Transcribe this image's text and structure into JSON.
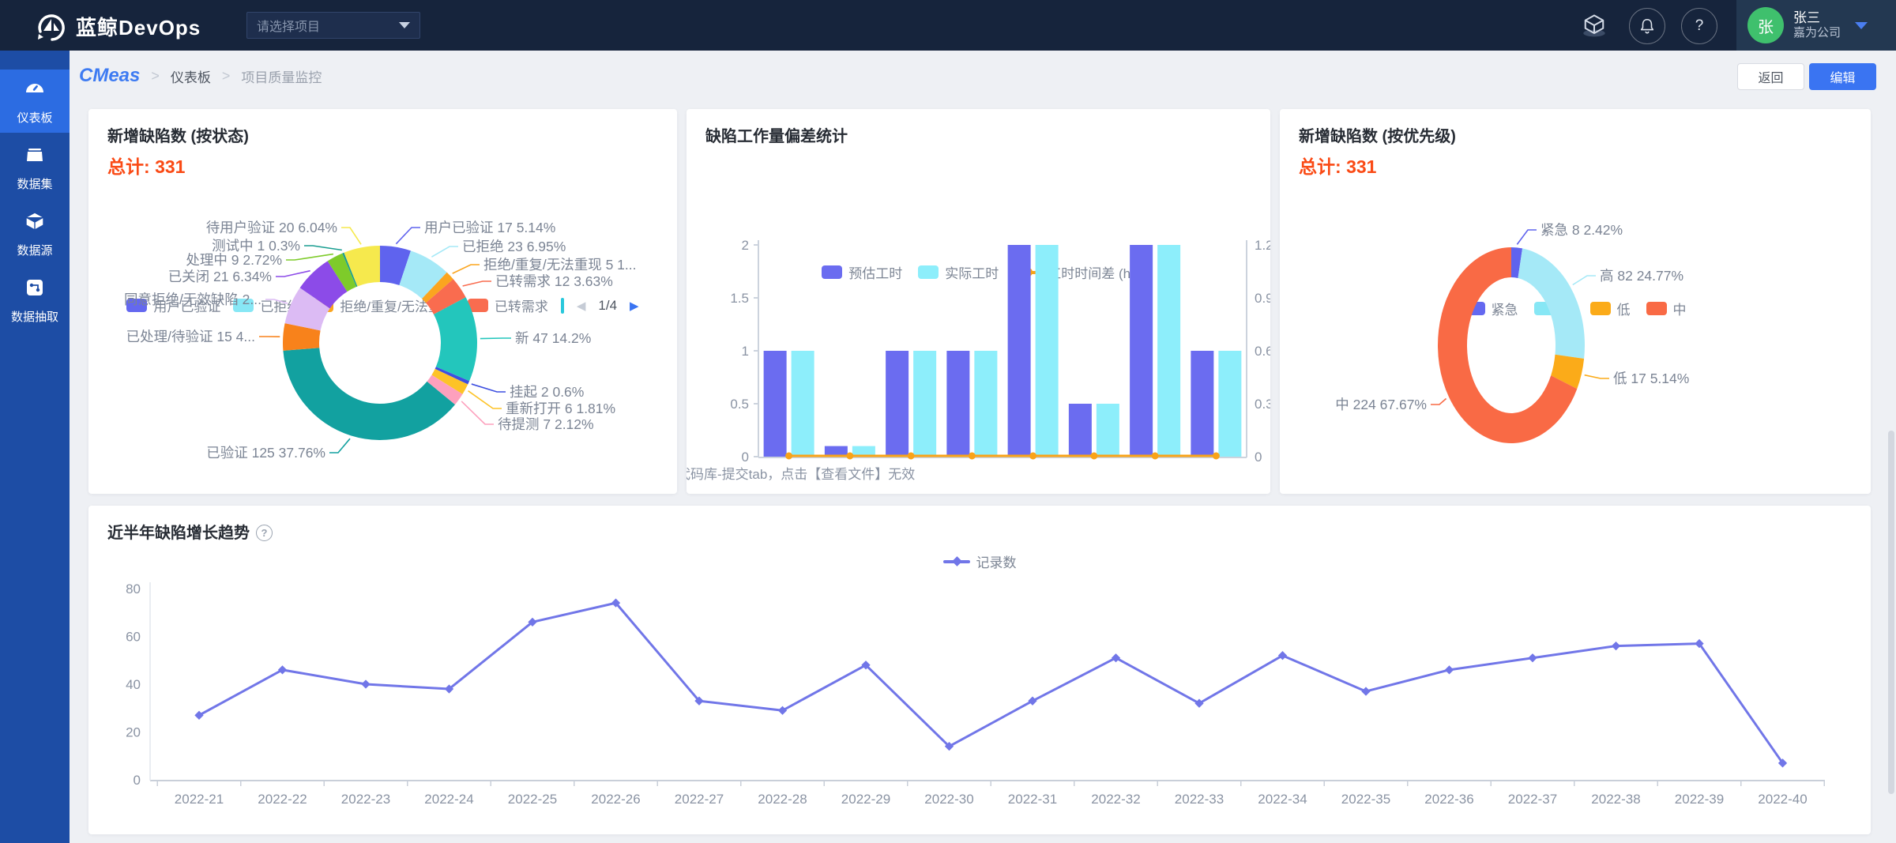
{
  "topbar": {
    "logo_text": "蓝鲸DevOps",
    "project_placeholder": "请选择项目",
    "user": {
      "avatar_text": "张",
      "name": "张三",
      "company": "嘉为公司"
    }
  },
  "sidebar": {
    "items": [
      {
        "label": "仪表板",
        "icon": "dashboard-gauge",
        "active": true
      },
      {
        "label": "数据集",
        "icon": "dataset-box",
        "active": false
      },
      {
        "label": "数据源",
        "icon": "datasource-cube",
        "active": false
      },
      {
        "label": "数据抽取",
        "icon": "extract-node",
        "active": false
      }
    ]
  },
  "breadcrumb": {
    "brand": "CMeas",
    "level1": "仪表板",
    "level2": "项目质量监控"
  },
  "buttons": {
    "back": "返回",
    "edit": "编辑"
  },
  "colors": {
    "topbar_bg": "#16243c",
    "sidebar_bg": "#1d4da5",
    "sidebar_active": "#2c6ce2",
    "accent_blue": "#3a74f2",
    "total_orange": "#fa4a15",
    "avatar_green": "#3fc06d"
  },
  "chart_data": [
    {
      "id": "defects_by_status",
      "type": "pie",
      "title": "新增缺陷数 (按状态)",
      "total_label": "总计:",
      "total_value": "331",
      "legend_visible": [
        {
          "name": "用户已验证",
          "color": "#6468f0"
        },
        {
          "name": "已拒绝",
          "color": "#87e7f5"
        },
        {
          "name": "拒绝/重复/无法重现",
          "color": "#fba51f"
        },
        {
          "name": "已转需求",
          "color": "#f96c4f"
        }
      ],
      "legend_pagination": {
        "current": "1/4",
        "prev_arrow": "◀",
        "next_arrow": "▶"
      },
      "slices": [
        {
          "name": "用户已验证",
          "value": 17,
          "pct": 5.14,
          "label": "用户已验证 17 5.14%",
          "color": "#5f63ee"
        },
        {
          "name": "已拒绝",
          "value": 23,
          "pct": 6.95,
          "label": "已拒绝 23 6.95%",
          "color": "#a5e9f7"
        },
        {
          "name": "拒绝/重复/无法重现",
          "value": 5,
          "pct": 1.51,
          "label": "拒绝/重复/无法重现 5 1...",
          "color": "#fba51f"
        },
        {
          "name": "已转需求",
          "value": 12,
          "pct": 3.63,
          "label": "已转需求 12 3.63%",
          "color": "#f96c4f"
        },
        {
          "name": "新",
          "value": 47,
          "pct": 14.2,
          "label": "新 47 14.2%",
          "color": "#23c6bc"
        },
        {
          "name": "挂起",
          "value": 2,
          "pct": 0.6,
          "label": "挂起 2 0.6%",
          "color": "#3d4fe0"
        },
        {
          "name": "重新打开",
          "value": 6,
          "pct": 1.81,
          "label": "重新打开 6 1.81%",
          "color": "#fdc327"
        },
        {
          "name": "待提测",
          "value": 7,
          "pct": 2.12,
          "label": "待提测 7 2.12%",
          "color": "#fda0bd"
        },
        {
          "name": "已验证",
          "value": 125,
          "pct": 37.76,
          "label": "已验证 125 37.76%",
          "color": "#12a1a0"
        },
        {
          "name": "已处理/待验证",
          "value": 15,
          "pct": 4.53,
          "label": "已处理/待验证 15 4...",
          "color": "#f8821b"
        },
        {
          "name": "同意拒绝/无效缺陷",
          "value": 21,
          "pct": 6.34,
          "label": "同意拒绝/无效缺陷 2...",
          "color": "#dcbbf4"
        },
        {
          "name": "已关闭",
          "value": 21,
          "pct": 6.34,
          "label": "已关闭 21 6.34%",
          "color": "#8c4be8"
        },
        {
          "name": "处理中",
          "value": 9,
          "pct": 2.72,
          "label": "处理中 9 2.72%",
          "color": "#7ecb2a"
        },
        {
          "name": "测试中",
          "value": 1,
          "pct": 0.3,
          "label": "测试中 1 0.3%",
          "color": "#1a9e91"
        },
        {
          "name": "待用户验证",
          "value": 20,
          "pct": 6.04,
          "label": "待用户验证 20 6.04%",
          "color": "#f6e94d"
        }
      ]
    },
    {
      "id": "workload_deviation",
      "type": "bar",
      "title": "缺陷工作量偏差统计",
      "legend": [
        {
          "name": "预估工时",
          "color": "#6b6cf0",
          "shape": "rect"
        },
        {
          "name": "实际工时",
          "color": "#8deefb",
          "shape": "rect"
        },
        {
          "name": "工时时间差 (h)",
          "color": "#f9a318",
          "shape": "line"
        }
      ],
      "series": [
        {
          "name": "预估工时",
          "values": [
            1,
            0.1,
            1,
            1,
            2,
            0.5,
            2,
            1
          ]
        },
        {
          "name": "实际工时",
          "values": [
            1,
            0.1,
            1,
            1,
            2,
            0.5,
            2,
            1
          ]
        },
        {
          "name": "工时时间差 (h)",
          "values": [
            0,
            0,
            0,
            0,
            0,
            0,
            0,
            0
          ],
          "axis": "right",
          "type": "line"
        }
      ],
      "left_axis_ticks": [
        "0",
        "0.5",
        "1",
        "1.5",
        "2"
      ],
      "left_axis_max": 2,
      "right_axis_ticks": [
        "0",
        "0.3",
        "0.6",
        "0.9",
        "1.2"
      ],
      "right_axis_max": 1.2,
      "x_axis_label_visible": "代码库-提交tab，点击【查看文件】无效"
    },
    {
      "id": "defects_by_priority",
      "type": "pie",
      "title": "新增缺陷数 (按优先级)",
      "total_label": "总计:",
      "total_value": "331",
      "legend_visible": [
        {
          "name": "紧急",
          "color": "#6468f0"
        },
        {
          "name": "高",
          "color": "#87e7f5"
        },
        {
          "name": "低",
          "color": "#fbab19"
        },
        {
          "name": "中",
          "color": "#f96a45"
        }
      ],
      "slices": [
        {
          "name": "紧急",
          "value": 8,
          "pct": 2.42,
          "label": "紧急 8 2.42%",
          "color": "#5f63ee"
        },
        {
          "name": "高",
          "value": 82,
          "pct": 24.77,
          "label": "高 82 24.77%",
          "color": "#a5e9f7"
        },
        {
          "name": "低",
          "value": 17,
          "pct": 5.14,
          "label": "低 17 5.14%",
          "color": "#fbab19"
        },
        {
          "name": "中",
          "value": 224,
          "pct": 67.67,
          "label": "中 224 67.67%",
          "color": "#f96a45"
        }
      ]
    },
    {
      "id": "defect_trend",
      "type": "line",
      "title": "近半年缺陷增长趋势",
      "legend": [
        {
          "name": "记录数",
          "color": "#7176e8"
        }
      ],
      "x": [
        "2022-21",
        "2022-22",
        "2022-23",
        "2022-24",
        "2022-25",
        "2022-26",
        "2022-27",
        "2022-28",
        "2022-29",
        "2022-30",
        "2022-31",
        "2022-32",
        "2022-33",
        "2022-34",
        "2022-35",
        "2022-36",
        "2022-37",
        "2022-38",
        "2022-39",
        "2022-40"
      ],
      "values": [
        27,
        46,
        40,
        38,
        66,
        74,
        33,
        29,
        48,
        14,
        33,
        51,
        32,
        52,
        37,
        46,
        51,
        56,
        57,
        7
      ],
      "yticks": [
        "0",
        "20",
        "40",
        "60",
        "80"
      ],
      "ylim": [
        0,
        80
      ],
      "grid": false,
      "legend_position": "top-center"
    }
  ]
}
